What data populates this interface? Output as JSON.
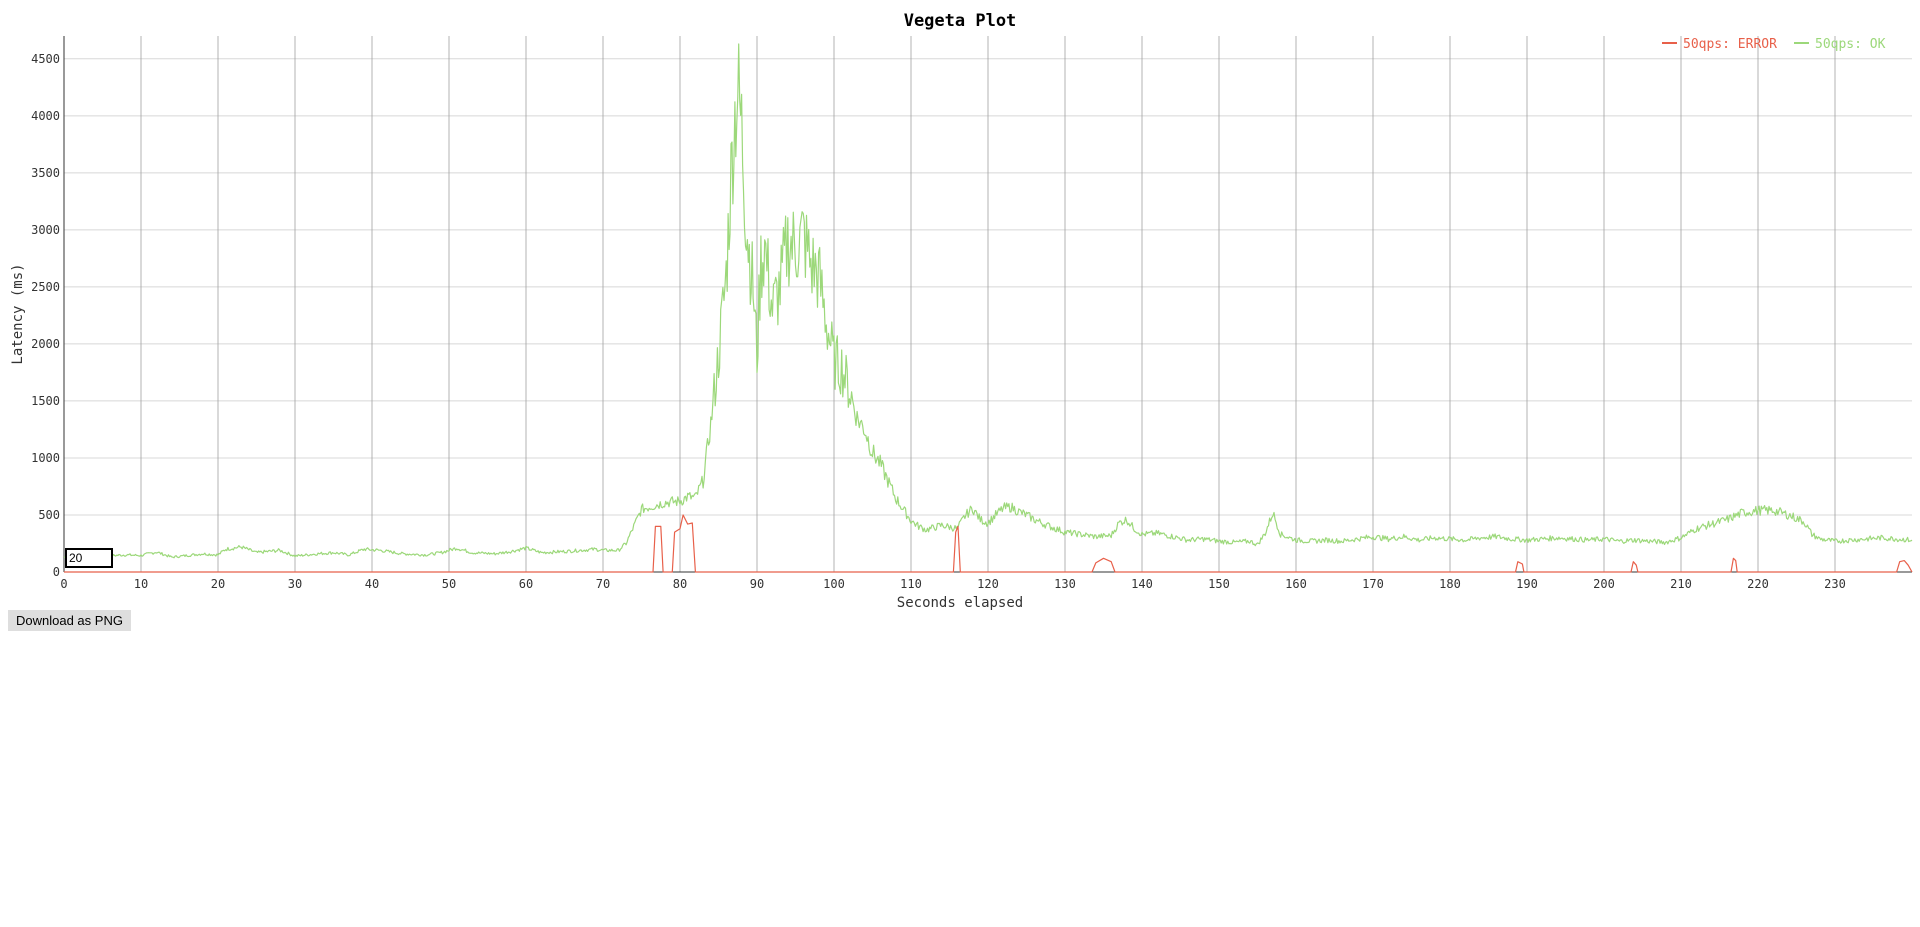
{
  "window": {
    "roll_period": "20",
    "download_label": "Download as PNG"
  },
  "colors": {
    "error": "#e8604a",
    "ok": "#9cd87a",
    "grid": "#d8d8d8",
    "vgrid": "#a0a0a0",
    "axis": "#333333"
  },
  "chart_data": {
    "type": "line",
    "title": "Vegeta Plot",
    "xlabel": "Seconds elapsed",
    "ylabel": "Latency (ms)",
    "xlim": [
      0,
      240
    ],
    "ylim": [
      0,
      4700
    ],
    "xticks": [
      0,
      10,
      20,
      30,
      40,
      50,
      60,
      70,
      80,
      90,
      100,
      110,
      120,
      130,
      140,
      150,
      160,
      170,
      180,
      190,
      200,
      210,
      220,
      230
    ],
    "yticks": [
      0,
      500,
      1000,
      1500,
      2000,
      2500,
      3000,
      3500,
      4000,
      4500
    ],
    "grid": true,
    "legend_position": "top-right",
    "series": [
      {
        "name": "50qps: ERROR",
        "color": "#e8604a",
        "points": [
          [
            0,
            0
          ],
          [
            76.5,
            0
          ],
          [
            76.8,
            400
          ],
          [
            77.5,
            400
          ],
          [
            77.8,
            0
          ],
          [
            79,
            0
          ],
          [
            79.3,
            350
          ],
          [
            80,
            380
          ],
          [
            80.4,
            500
          ],
          [
            81,
            420
          ],
          [
            81.6,
            430
          ],
          [
            82,
            0
          ],
          [
            115.5,
            0
          ],
          [
            115.8,
            350
          ],
          [
            116.1,
            400
          ],
          [
            116.4,
            0
          ],
          [
            133.5,
            0
          ],
          [
            134,
            80
          ],
          [
            135,
            120
          ],
          [
            136,
            90
          ],
          [
            136.5,
            0
          ],
          [
            188.5,
            0
          ],
          [
            188.8,
            90
          ],
          [
            189.4,
            70
          ],
          [
            189.6,
            0
          ],
          [
            203.5,
            0
          ],
          [
            203.8,
            90
          ],
          [
            204.2,
            60
          ],
          [
            204.4,
            0
          ],
          [
            216.5,
            0
          ],
          [
            216.8,
            120
          ],
          [
            217.1,
            100
          ],
          [
            217.3,
            0
          ],
          [
            238,
            0
          ],
          [
            238.4,
            90
          ],
          [
            239,
            100
          ],
          [
            239.5,
            60
          ],
          [
            240,
            0
          ]
        ]
      },
      {
        "name": "50qps: OK",
        "color": "#9cd87a",
        "points": [
          [
            0,
            130
          ],
          [
            5,
            140
          ],
          [
            8,
            150
          ],
          [
            10,
            145
          ],
          [
            12,
            175
          ],
          [
            14,
            130
          ],
          [
            18,
            160
          ],
          [
            20,
            150
          ],
          [
            21,
            200
          ],
          [
            23,
            220
          ],
          [
            25,
            170
          ],
          [
            28,
            190
          ],
          [
            30,
            140
          ],
          [
            33,
            160
          ],
          [
            35,
            170
          ],
          [
            37,
            150
          ],
          [
            39,
            200
          ],
          [
            41,
            190
          ],
          [
            44,
            160
          ],
          [
            47,
            150
          ],
          [
            49,
            170
          ],
          [
            51,
            210
          ],
          [
            53,
            170
          ],
          [
            56,
            160
          ],
          [
            58,
            180
          ],
          [
            60,
            210
          ],
          [
            62,
            170
          ],
          [
            65,
            180
          ],
          [
            67,
            190
          ],
          [
            69,
            200
          ],
          [
            70,
            190
          ],
          [
            72,
            190
          ],
          [
            73,
            250
          ],
          [
            74,
            400
          ],
          [
            75,
            550
          ],
          [
            76,
            570
          ],
          [
            78,
            610
          ],
          [
            80,
            620
          ],
          [
            81,
            660
          ],
          [
            82,
            650
          ],
          [
            83,
            800
          ],
          [
            84,
            1300
          ],
          [
            85,
            1900
          ],
          [
            86,
            2600
          ],
          [
            86.5,
            3300
          ],
          [
            87,
            3900
          ],
          [
            87.5,
            4250
          ],
          [
            88,
            3900
          ],
          [
            88.5,
            3200
          ],
          [
            89,
            2800
          ],
          [
            89.5,
            2500
          ],
          [
            90,
            1900
          ],
          [
            90.5,
            2700
          ],
          [
            91,
            2850
          ],
          [
            92,
            2300
          ],
          [
            93,
            2500
          ],
          [
            94,
            2900
          ],
          [
            95,
            2850
          ],
          [
            96,
            2950
          ],
          [
            97,
            2700
          ],
          [
            98,
            2600
          ],
          [
            99,
            2200
          ],
          [
            100,
            1850
          ],
          [
            101,
            1800
          ],
          [
            102,
            1600
          ],
          [
            103,
            1350
          ],
          [
            104,
            1250
          ],
          [
            105,
            1050
          ],
          [
            106,
            950
          ],
          [
            107,
            800
          ],
          [
            108,
            650
          ],
          [
            109,
            550
          ],
          [
            110,
            450
          ],
          [
            111,
            400
          ],
          [
            112,
            370
          ],
          [
            114,
            410
          ],
          [
            116,
            380
          ],
          [
            117,
            490
          ],
          [
            118,
            560
          ],
          [
            119,
            460
          ],
          [
            120,
            430
          ],
          [
            121,
            500
          ],
          [
            122,
            560
          ],
          [
            123,
            570
          ],
          [
            124,
            530
          ],
          [
            125,
            500
          ],
          [
            126,
            460
          ],
          [
            128,
            400
          ],
          [
            130,
            350
          ],
          [
            132,
            330
          ],
          [
            134,
            310
          ],
          [
            136,
            320
          ],
          [
            137,
            430
          ],
          [
            138,
            460
          ],
          [
            139,
            380
          ],
          [
            140,
            330
          ],
          [
            142,
            340
          ],
          [
            144,
            310
          ],
          [
            146,
            280
          ],
          [
            148,
            290
          ],
          [
            150,
            270
          ],
          [
            152,
            260
          ],
          [
            154,
            270
          ],
          [
            155,
            240
          ],
          [
            156,
            340
          ],
          [
            157,
            520
          ],
          [
            158,
            330
          ],
          [
            160,
            280
          ],
          [
            162,
            270
          ],
          [
            164,
            280
          ],
          [
            166,
            270
          ],
          [
            168,
            290
          ],
          [
            170,
            310
          ],
          [
            172,
            290
          ],
          [
            174,
            310
          ],
          [
            176,
            280
          ],
          [
            178,
            300
          ],
          [
            180,
            290
          ],
          [
            182,
            280
          ],
          [
            184,
            300
          ],
          [
            186,
            310
          ],
          [
            188,
            290
          ],
          [
            190,
            280
          ],
          [
            192,
            290
          ],
          [
            194,
            300
          ],
          [
            196,
            290
          ],
          [
            198,
            280
          ],
          [
            200,
            290
          ],
          [
            202,
            270
          ],
          [
            204,
            280
          ],
          [
            206,
            270
          ],
          [
            208,
            260
          ],
          [
            210,
            300
          ],
          [
            212,
            380
          ],
          [
            214,
            420
          ],
          [
            216,
            460
          ],
          [
            218,
            520
          ],
          [
            220,
            540
          ],
          [
            222,
            540
          ],
          [
            224,
            500
          ],
          [
            226,
            440
          ],
          [
            227,
            330
          ],
          [
            228,
            290
          ],
          [
            230,
            270
          ],
          [
            232,
            280
          ],
          [
            234,
            290
          ],
          [
            236,
            300
          ],
          [
            238,
            290
          ],
          [
            240,
            280
          ]
        ]
      }
    ]
  }
}
